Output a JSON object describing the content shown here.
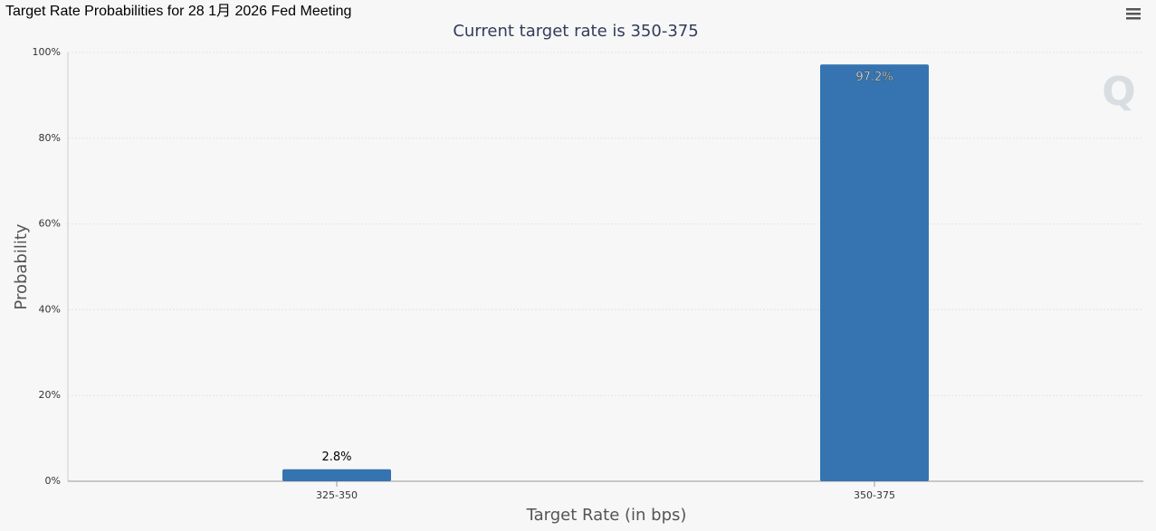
{
  "chart_data": {
    "type": "bar",
    "title": "Target Rate Probabilities for 28 1月 2026 Fed Meeting",
    "subtitle": "Current target rate is 350-375",
    "x_label": "Target Rate (in bps)",
    "y_label": "Probability",
    "categories": [
      "325-350",
      "350-375"
    ],
    "values": [
      2.8,
      97.2
    ],
    "value_labels": [
      "2.8%",
      "97.2%"
    ],
    "color": "#3574b0",
    "ylim": [
      0,
      100
    ],
    "yticks": [
      {
        "value": 0,
        "label": "0%"
      },
      {
        "value": 20,
        "label": "20%"
      },
      {
        "value": 40,
        "label": "40%"
      },
      {
        "value": 60,
        "label": "60%"
      },
      {
        "value": 80,
        "label": "80%"
      },
      {
        "value": 100,
        "label": "100%"
      }
    ],
    "grid": true
  }
}
